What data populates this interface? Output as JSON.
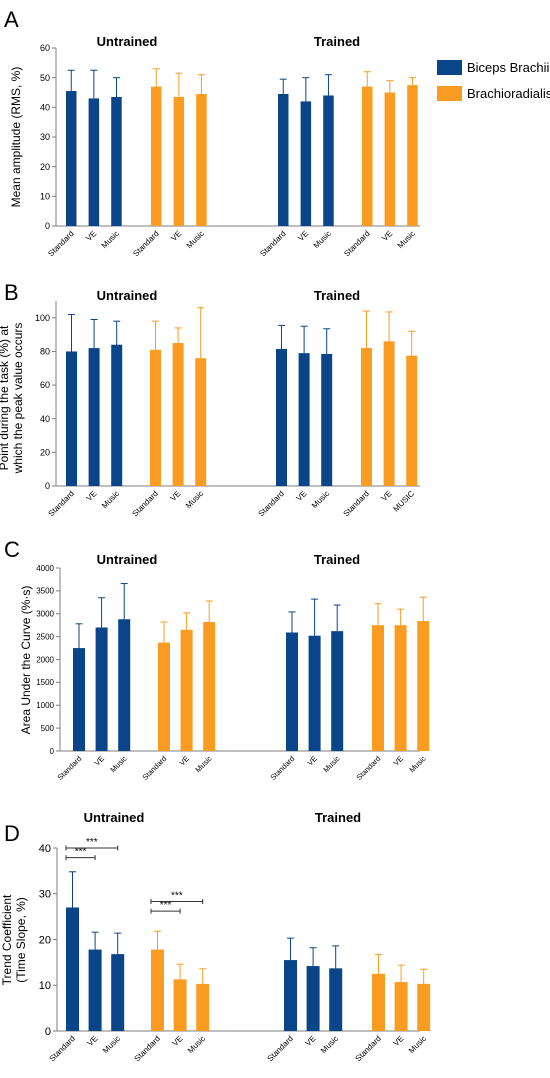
{
  "colors": {
    "biceps": "#0a4589",
    "brachio": "#fa9c21",
    "axis": "#7f7f7f",
    "text": "#000000"
  },
  "legend": [
    {
      "name": "Biceps Brachii",
      "color": "#0a4589"
    },
    {
      "name": "Brachioradialis",
      "color": "#fa9c21"
    }
  ],
  "chart_data": [
    {
      "type": "bar",
      "panel_label": "A",
      "ylabel": "Mean amplitude (RMS, %)",
      "ylabel_lines": [
        "Mean amplitude (RMS, %)"
      ],
      "ylim": [
        0,
        60
      ],
      "yticks": [
        0,
        10,
        20,
        30,
        40,
        50,
        60
      ],
      "groups": [
        {
          "title": "Untrained",
          "clusters": [
            {
              "muscle": "Biceps Brachii",
              "labels": [
                "Standard",
                "VE",
                "Music"
              ],
              "values": [
                45.5,
                43,
                43.5
              ],
              "errors": [
                7,
                9.5,
                6.5
              ]
            },
            {
              "muscle": "Brachioradialis",
              "labels": [
                "Standard",
                "VE",
                "Music"
              ],
              "values": [
                47,
                43.5,
                44.5
              ],
              "errors": [
                6,
                8,
                6.5
              ]
            }
          ]
        },
        {
          "title": "Trained",
          "clusters": [
            {
              "muscle": "Biceps Brachii",
              "labels": [
                "Standard",
                "VE",
                "Music"
              ],
              "values": [
                44.5,
                42,
                44
              ],
              "errors": [
                5,
                8,
                7
              ]
            },
            {
              "muscle": "Brachioradialis",
              "labels": [
                "Standard",
                "VE",
                "Music"
              ],
              "values": [
                47,
                45,
                47.5
              ],
              "errors": [
                5,
                4,
                2.5
              ]
            }
          ]
        }
      ],
      "significance": []
    },
    {
      "type": "bar",
      "panel_label": "B",
      "ylabel": "Point during the task (%) at which the peak value occurs",
      "ylabel_lines": [
        "Point during the task (%) at",
        "which the peak value occurs"
      ],
      "ylim": [
        0,
        110
      ],
      "yticks": [
        0,
        20,
        40,
        60,
        80,
        100
      ],
      "groups": [
        {
          "title": "Untrained",
          "clusters": [
            {
              "muscle": "Biceps Brachii",
              "labels": [
                "Standard",
                "VE",
                "Music"
              ],
              "values": [
                80,
                82,
                84
              ],
              "errors": [
                22,
                17,
                14
              ]
            },
            {
              "muscle": "Brachioradialis",
              "labels": [
                "Standard",
                "VE",
                "Music"
              ],
              "values": [
                81,
                85,
                76
              ],
              "errors": [
                17,
                9,
                30
              ]
            }
          ]
        },
        {
          "title": "Trained",
          "clusters": [
            {
              "muscle": "Biceps Brachii",
              "labels": [
                "Standard",
                "VE",
                "Music"
              ],
              "values": [
                81.5,
                79,
                78.5
              ],
              "errors": [
                14,
                16,
                15
              ]
            },
            {
              "muscle": "Brachioradialis",
              "labels": [
                "Standard",
                "VE",
                "MUSIC"
              ],
              "values": [
                82,
                86,
                77.5
              ],
              "errors": [
                22,
                17.5,
                14.5
              ]
            }
          ]
        }
      ],
      "significance": []
    },
    {
      "type": "bar",
      "panel_label": "C",
      "ylabel": "Area Under the Curve (%·s)",
      "ylabel_lines": [
        "Area Under the Curve (%·s)"
      ],
      "ylim": [
        0,
        4000
      ],
      "yticks": [
        0,
        500,
        1000,
        1500,
        2000,
        2500,
        3000,
        3500,
        4000
      ],
      "groups": [
        {
          "title": "Untrained",
          "clusters": [
            {
              "muscle": "Biceps Brachii",
              "labels": [
                "Standard",
                "VE",
                "Music"
              ],
              "values": [
                2250,
                2700,
                2880
              ],
              "errors": [
                530,
                650,
                780
              ]
            },
            {
              "muscle": "Brachioradialis",
              "labels": [
                "Standard",
                "VE",
                "Music"
              ],
              "values": [
                2370,
                2650,
                2820
              ],
              "errors": [
                450,
                370,
                460
              ]
            }
          ]
        },
        {
          "title": "Trained",
          "clusters": [
            {
              "muscle": "Biceps Brachii",
              "labels": [
                "Standard",
                "VE",
                "Music"
              ],
              "values": [
                2590,
                2520,
                2620
              ],
              "errors": [
                450,
                800,
                570
              ]
            },
            {
              "muscle": "Brachioradialis",
              "labels": [
                "Standard",
                "VE",
                "Music"
              ],
              "values": [
                2750,
                2750,
                2840
              ],
              "errors": [
                470,
                350,
                520
              ]
            }
          ]
        }
      ],
      "significance": []
    },
    {
      "type": "bar",
      "panel_label": "D",
      "ylabel": "Trend Coefficient (Time Slope, %)",
      "ylabel_lines": [
        "Trend Coefficient",
        "(Time Slope, %)"
      ],
      "ylim": [
        0,
        40
      ],
      "yticks": [
        0,
        10,
        20,
        30,
        40
      ],
      "groups": [
        {
          "title": "Untrained",
          "clusters": [
            {
              "muscle": "Biceps Brachii",
              "labels": [
                "Standard",
                "VE",
                "Music"
              ],
              "values": [
                27,
                17.8,
                16.8
              ],
              "errors": [
                7.8,
                3.8,
                4.6
              ]
            },
            {
              "muscle": "Brachioradialis",
              "labels": [
                "Standard",
                "VE",
                "Music"
              ],
              "values": [
                17.8,
                11.3,
                10.3
              ],
              "errors": [
                4,
                3.3,
                3.3
              ]
            }
          ]
        },
        {
          "title": "Trained",
          "clusters": [
            {
              "muscle": "Biceps Brachii",
              "labels": [
                "Standard",
                "VE",
                "Music"
              ],
              "values": [
                15.5,
                14.2,
                13.7
              ],
              "errors": [
                4.8,
                4,
                4.9
              ]
            },
            {
              "muscle": "Brachioradialis",
              "labels": [
                "Standard",
                "VE",
                "Music"
              ],
              "values": [
                12.5,
                10.7,
                10.3
              ],
              "errors": [
                4.2,
                3.7,
                3.2
              ]
            }
          ]
        }
      ],
      "significance": [
        {
          "group": 0,
          "cluster": 0,
          "from": 0,
          "to": 1,
          "y": 37.9,
          "label": "***"
        },
        {
          "group": 0,
          "cluster": 0,
          "from": 0,
          "to": 2,
          "y": 40,
          "label": "***"
        },
        {
          "group": 0,
          "cluster": 1,
          "from": 0,
          "to": 1,
          "y": 26.2,
          "label": "***"
        },
        {
          "group": 0,
          "cluster": 1,
          "from": 0,
          "to": 2,
          "y": 28.3,
          "label": "***"
        }
      ]
    }
  ]
}
